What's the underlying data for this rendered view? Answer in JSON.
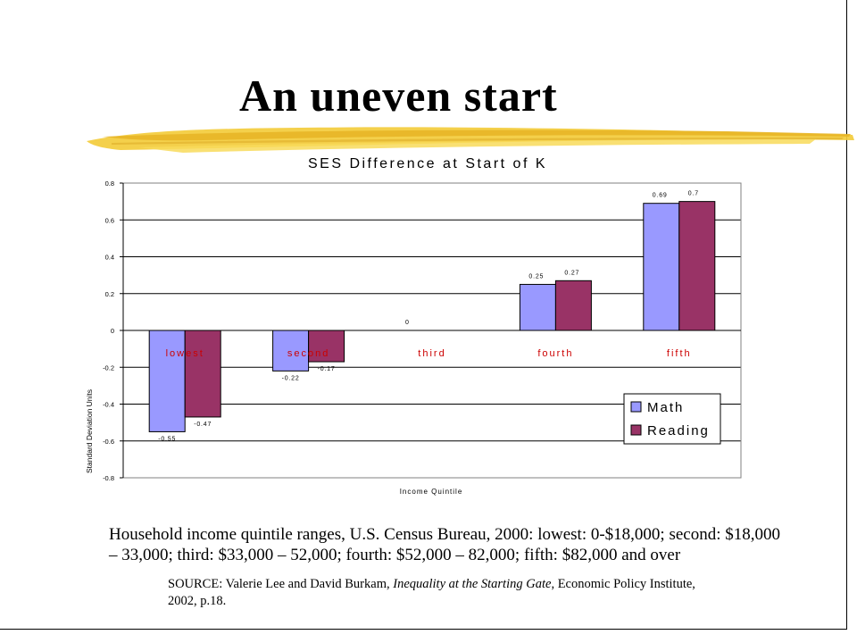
{
  "slide": {
    "title": "An uneven start",
    "caption": "Household income quintile ranges, U.S. Census Bureau, 2000: lowest: 0-$18,000; second: $18,000 – 33,000; third: $33,000 – 52,000; fourth: $52,000 – 82,000; fifth: $82,000 and over",
    "source": {
      "prefix": "SOURCE: Valerie Lee and David Burkam, ",
      "book_title": "Inequality at the Starting Gate",
      "suffix": ", Economic Policy Institute, 2002, p.18."
    }
  },
  "chart_data": {
    "type": "bar",
    "title": "SES Difference at Start of K",
    "xlabel": "Income Quintile",
    "ylabel": "Standard Deviation Units",
    "categories": [
      "lowest",
      "second",
      "third",
      "fourth",
      "fifth"
    ],
    "series": [
      {
        "name": "Math",
        "color": "#9999ff",
        "values": [
          -0.55,
          -0.22,
          0,
          0.25,
          0.69
        ],
        "labels": [
          "-0.55",
          "-0.22",
          "0",
          "0.25",
          "0.69"
        ]
      },
      {
        "name": "Reading",
        "color": "#993366",
        "values": [
          -0.47,
          -0.17,
          0,
          0.27,
          0.7
        ],
        "labels": [
          "-0.47",
          "-0.17",
          "",
          "0.27",
          "0.7"
        ]
      }
    ],
    "ylim": [
      -0.8,
      0.8
    ],
    "yticks": [
      0.8,
      0.6,
      0.4,
      0.2,
      0,
      -0.2,
      -0.4,
      -0.6,
      -0.8
    ],
    "grid": true,
    "legend_position": "bottom-right",
    "category_label_color": "#cc0000"
  }
}
